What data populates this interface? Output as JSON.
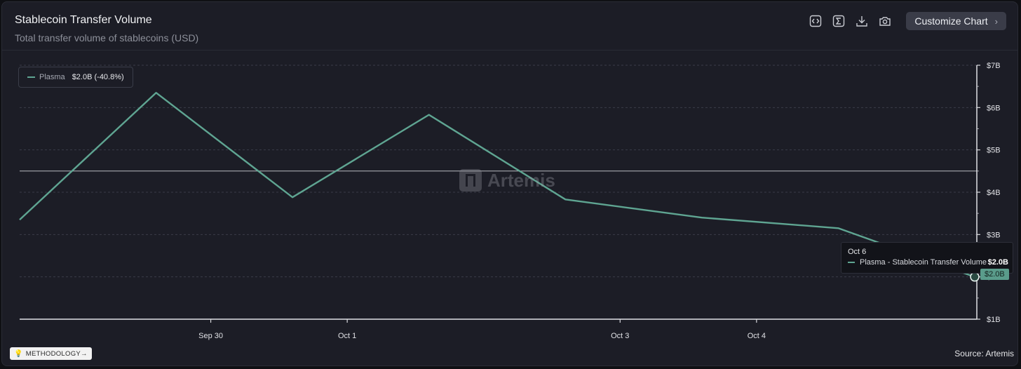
{
  "header": {
    "title": "Stablecoin Transfer Volume",
    "subtitle": "Total transfer volume of stablecoins (USD)",
    "customize_label": "Customize Chart",
    "tools": [
      "embed-icon",
      "sigma-icon",
      "download-icon",
      "camera-icon"
    ]
  },
  "legend": {
    "series_name": "Plasma",
    "summary": "$2.0B (-40.8%)"
  },
  "watermark": "Artemis",
  "tooltip": {
    "date": "Oct 6",
    "label": "Plasma - Stablecoin Transfer Volume",
    "value": "$2.0B"
  },
  "price_tag": "$2.0B",
  "footer": {
    "methodology_label": "METHODOLOGY→",
    "source": "Source: Artemis"
  },
  "colors": {
    "series": "#5fa592",
    "background": "#1c1d26"
  },
  "chart_data": {
    "type": "line",
    "title": "Stablecoin Transfer Volume",
    "subtitle": "Total transfer volume of stablecoins (USD)",
    "x_tick_labels": [
      "Sep 30",
      "Oct 1",
      "Oct 3",
      "Oct 4"
    ],
    "y_tick_labels": [
      "$7B",
      "$6B",
      "$5B",
      "$4B",
      "$3B",
      "$2B",
      "$1B"
    ],
    "ylim": [
      1,
      7
    ],
    "y_unit": "USD billions",
    "grid": true,
    "legend_position": "top-left",
    "series": [
      {
        "name": "Plasma",
        "points": [
          {
            "x": "Sep 29",
            "y": 3.35
          },
          {
            "x": "Sep 30",
            "y": 6.35
          },
          {
            "x": "Oct 1",
            "y": 3.88
          },
          {
            "x": "Oct 2",
            "y": 5.83
          },
          {
            "x": "Oct 3",
            "y": 3.83
          },
          {
            "x": "Oct 4",
            "y": 3.4
          },
          {
            "x": "Oct 5",
            "y": 3.15
          },
          {
            "x": "Oct 6",
            "y": 2.0
          }
        ]
      }
    ],
    "crosshair_value": 4.5
  }
}
